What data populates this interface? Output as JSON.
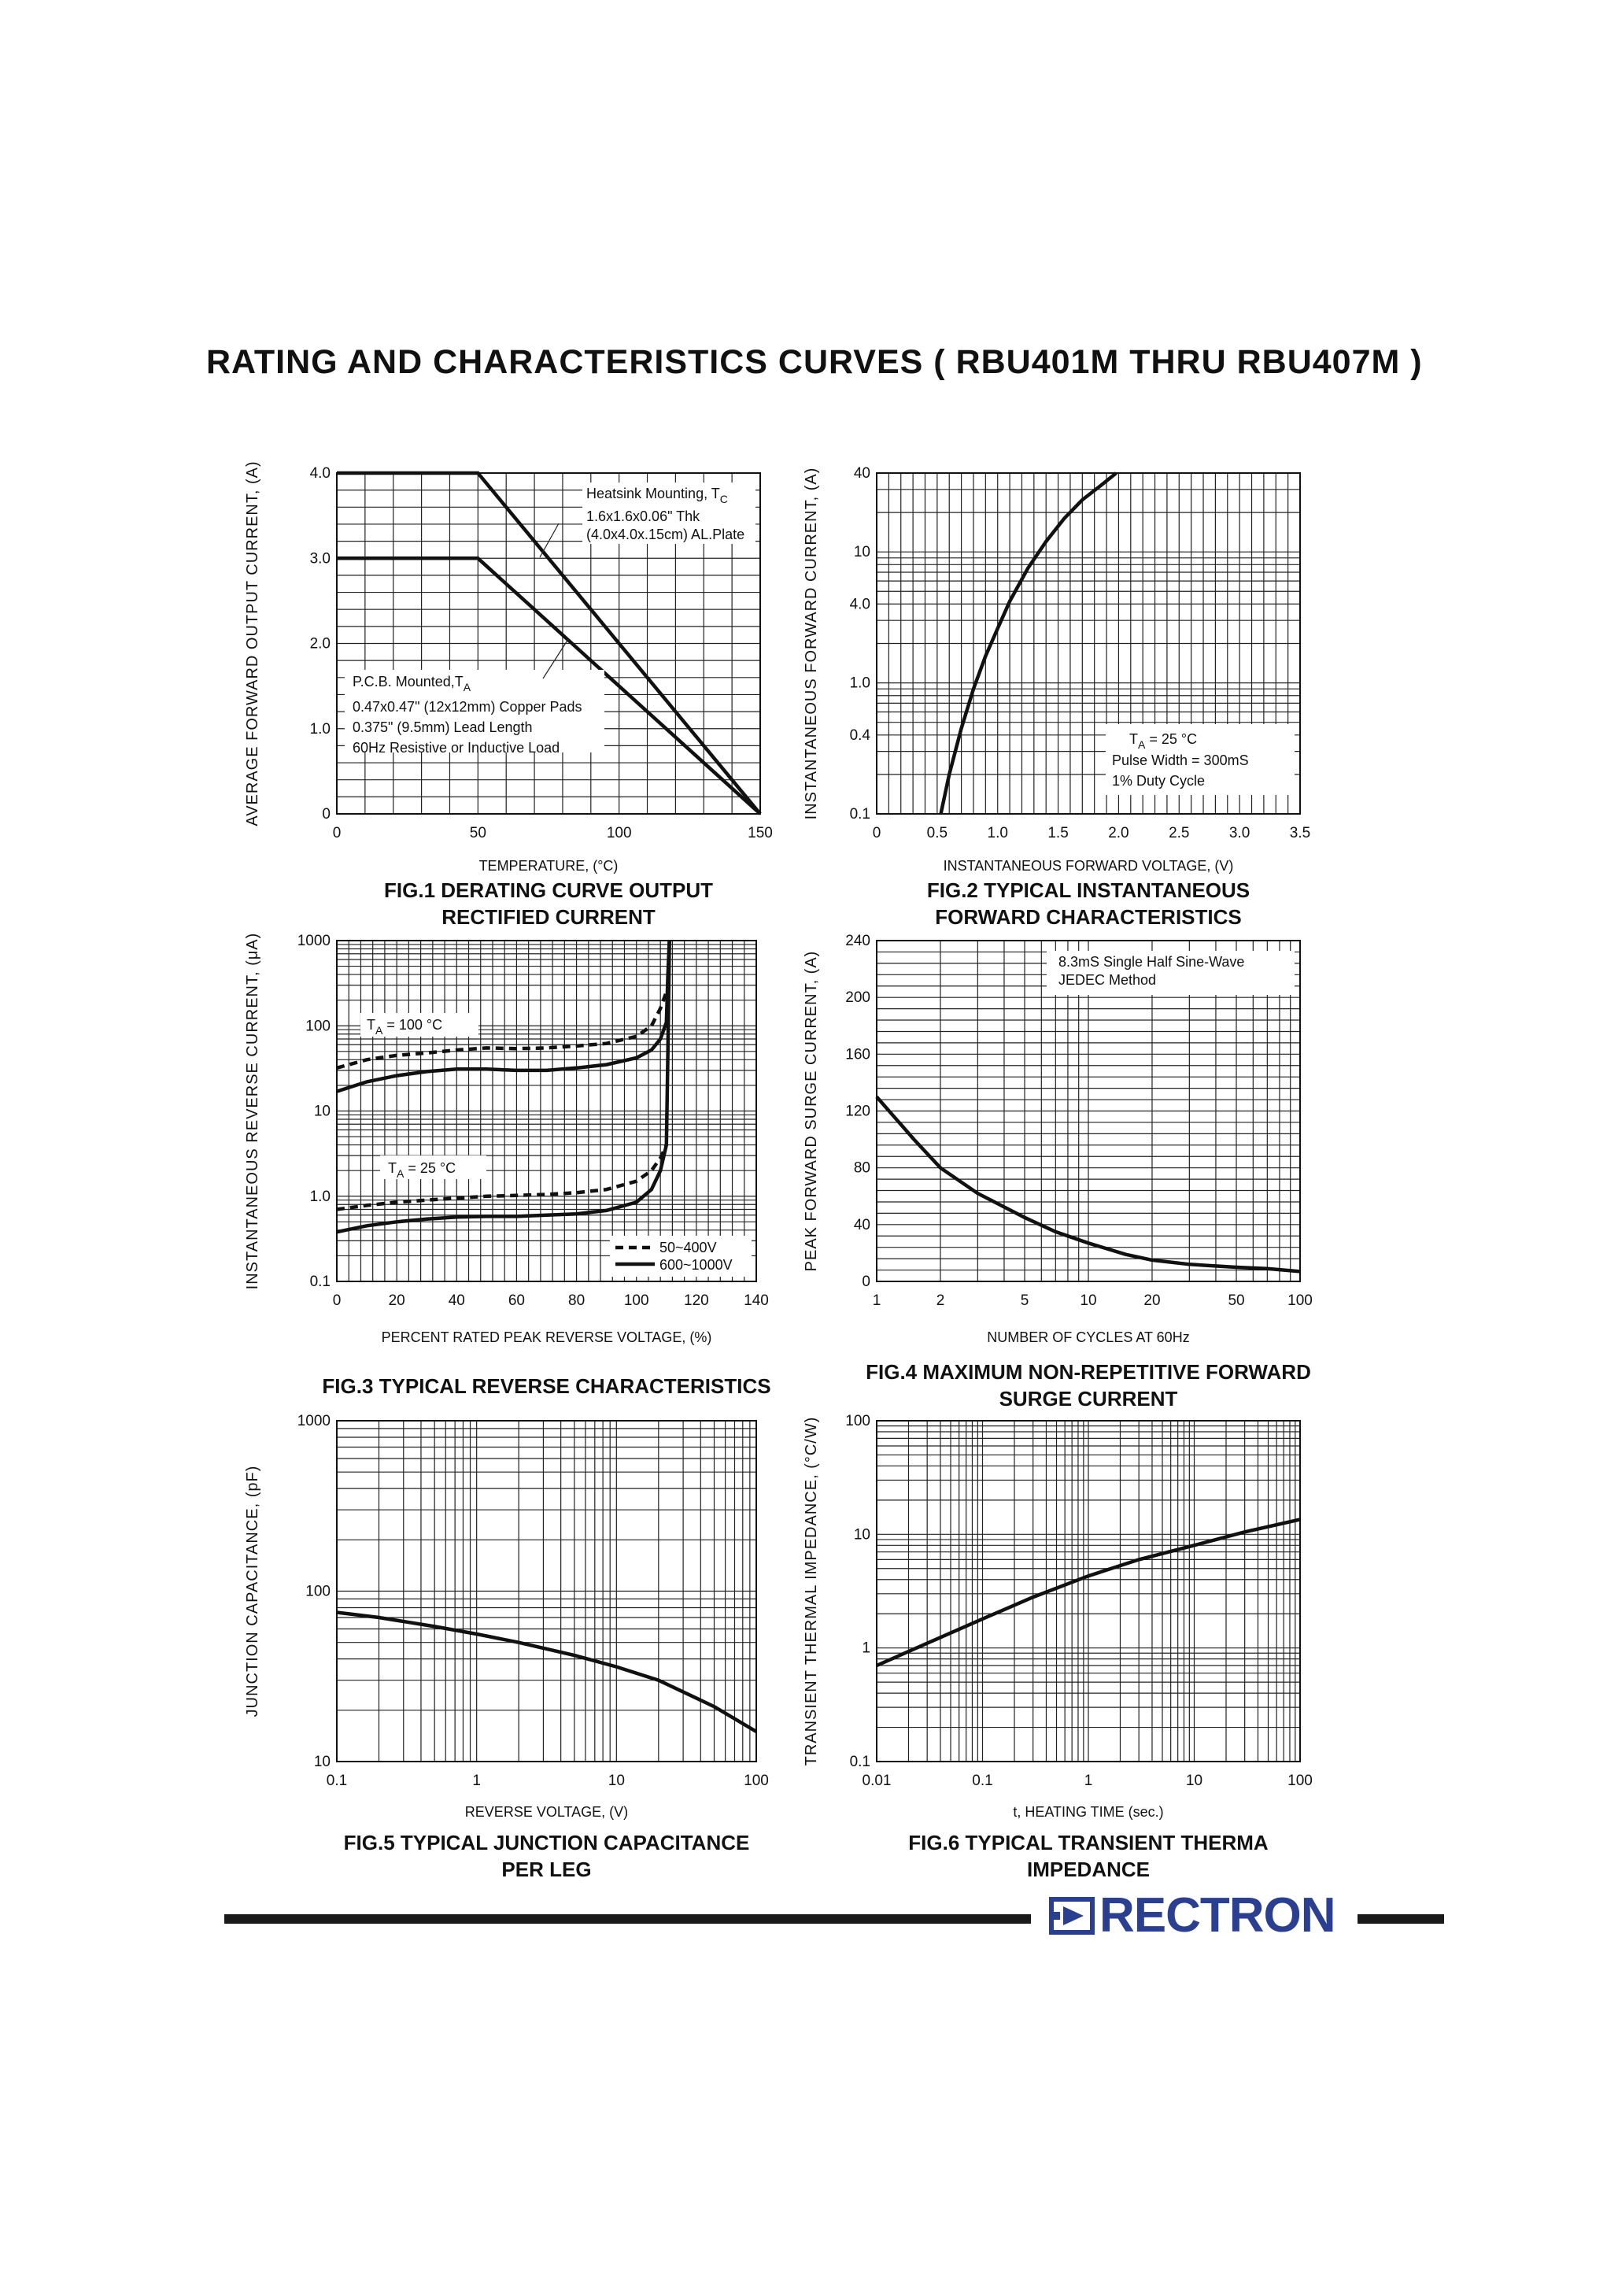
{
  "page_title": "RATING AND CHARACTERISTICS CURVES ( RBU401M THRU RBU407M )",
  "footer": {
    "logo_text": "RECTRON",
    "brand_color": "#2a3f8f"
  },
  "chart_data": [
    {
      "id": "fig1",
      "type": "line",
      "caption": [
        "FIG.1 DERATING CURVE OUTPUT",
        "RECTIFIED CURRENT"
      ],
      "xlabel": "TEMPERATURE, (°C)",
      "ylabel": "AVERAGE FORWARD OUTPUT CURRENT, (A)",
      "xlim": [
        0,
        150
      ],
      "ylim": [
        0,
        4
      ],
      "x_ticks": [
        0,
        50,
        100,
        150
      ],
      "x_tick_labels": [
        "0",
        "50",
        "100",
        "150"
      ],
      "y_ticks": [
        0,
        1,
        2,
        3,
        4
      ],
      "y_tick_labels": [
        "0",
        "1.0",
        "2.0",
        "3.0",
        "4.0"
      ],
      "grid": true,
      "series": [
        {
          "style": "solid",
          "x": [
            0,
            50,
            150
          ],
          "y": [
            4,
            4,
            0
          ]
        },
        {
          "style": "solid",
          "x": [
            0,
            50,
            150
          ],
          "y": [
            3,
            3,
            0
          ]
        }
      ],
      "annotations": [
        [
          "Heatsink Mounting, T",
          "1.6x1.6x0.06\" Thk",
          "(4.0x4.0x.15cm) AL.Plate"
        ],
        [
          "P.C.B. Mounted,T",
          "0.47x0.47\" (12x12mm) Copper Pads",
          "0.375\" (9.5mm) Lead Length",
          "60Hz Resistive or Inductive Load"
        ]
      ],
      "annotation_subscripts": [
        "C",
        "A"
      ]
    },
    {
      "id": "fig2",
      "type": "line",
      "caption": [
        "FIG.2 TYPICAL INSTANTANEOUS",
        "FORWARD CHARACTERISTICS"
      ],
      "xlabel": "INSTANTANEOUS FORWARD VOLTAGE, (V)",
      "ylabel": "INSTANTANEOUS FORWARD CURRENT, (A)",
      "xlim": [
        0,
        3.5
      ],
      "ylim": [
        0.1,
        40
      ],
      "yscale": "log",
      "x_ticks": [
        0,
        0.5,
        1,
        1.5,
        2,
        2.5,
        3,
        3.5
      ],
      "x_tick_labels": [
        "0",
        "0.5",
        "1.0",
        "1.5",
        "2.0",
        "2.5",
        "3.0",
        "3.5"
      ],
      "y_ticks": [
        0.1,
        0.4,
        1,
        4,
        10,
        40
      ],
      "y_tick_labels": [
        "0.1",
        "0.4",
        "1.0",
        "4.0",
        "10",
        "40"
      ],
      "grid": true,
      "series": [
        {
          "style": "solid",
          "x": [
            0.53,
            0.6,
            0.7,
            0.8,
            0.9,
            1.0,
            1.1,
            1.25,
            1.4,
            1.55,
            1.7,
            1.85,
            1.98
          ],
          "y": [
            0.1,
            0.2,
            0.45,
            0.9,
            1.6,
            2.6,
            4.2,
            7.5,
            12,
            18,
            25,
            32,
            40
          ]
        }
      ],
      "annotations": [
        [
          "T",
          " = 25 °C",
          "Pulse Width = 300mS",
          "1% Duty Cycle"
        ]
      ],
      "annotation_subscripts": [
        "A"
      ]
    },
    {
      "id": "fig3",
      "type": "line",
      "caption": [
        "FIG.3 TYPICAL REVERSE CHARACTERISTICS"
      ],
      "xlabel": "PERCENT RATED PEAK REVERSE VOLTAGE, (%)",
      "ylabel": "INSTANTANEOUS REVERSE CURRENT, (μA)",
      "xlim": [
        0,
        140
      ],
      "ylim": [
        0.1,
        1000
      ],
      "yscale": "log",
      "x_ticks": [
        0,
        20,
        40,
        60,
        80,
        100,
        120,
        140
      ],
      "x_tick_labels": [
        "0",
        "20",
        "40",
        "60",
        "80",
        "100",
        "120",
        "140"
      ],
      "y_ticks": [
        0.1,
        1,
        10,
        100,
        1000
      ],
      "y_tick_labels": [
        "0.1",
        "1.0",
        "10",
        "100",
        "1000"
      ],
      "grid": true,
      "series": [
        {
          "name": "50~400V",
          "style": "dashed",
          "x": [
            0,
            10,
            20,
            30,
            40,
            50,
            60,
            70,
            80,
            90,
            100,
            105,
            108,
            110
          ],
          "y": [
            32,
            40,
            45,
            48,
            52,
            55,
            54,
            55,
            58,
            62,
            75,
            100,
            160,
            250
          ]
        },
        {
          "name": "600~1000V",
          "style": "solid",
          "x": [
            0,
            10,
            20,
            30,
            40,
            50,
            60,
            70,
            80,
            90,
            100,
            105,
            108,
            110,
            110.5,
            111
          ],
          "y": [
            17,
            22,
            26,
            29,
            31,
            31,
            30,
            30,
            32,
            35,
            42,
            52,
            70,
            110,
            400,
            1000
          ]
        },
        {
          "name": "50~400V",
          "style": "dashed",
          "x": [
            0,
            10,
            20,
            30,
            40,
            50,
            60,
            70,
            80,
            90,
            100,
            105,
            108,
            110
          ],
          "y": [
            0.7,
            0.78,
            0.85,
            0.9,
            0.95,
            1.0,
            1.02,
            1.05,
            1.1,
            1.2,
            1.5,
            2.0,
            2.8,
            4.0
          ]
        },
        {
          "name": "600~1000V",
          "style": "solid",
          "x": [
            0,
            10,
            20,
            30,
            40,
            50,
            60,
            70,
            80,
            90,
            100,
            105,
            108,
            110,
            110.5,
            111
          ],
          "y": [
            0.38,
            0.45,
            0.5,
            0.54,
            0.57,
            0.58,
            0.58,
            0.6,
            0.62,
            0.68,
            0.85,
            1.2,
            2.0,
            4.0,
            50,
            1000
          ]
        }
      ],
      "annotations": [
        [
          "T",
          " = 100 °C"
        ],
        [
          "T",
          " = 25 °C"
        ]
      ],
      "annotation_subscripts": [
        "A",
        "A"
      ],
      "legend": {
        "position": "bottom-right",
        "entries": [
          "50~400V",
          "600~1000V"
        ]
      }
    },
    {
      "id": "fig4",
      "type": "line",
      "caption": [
        "FIG.4 MAXIMUM NON-REPETITIVE FORWARD",
        "SURGE CURRENT"
      ],
      "xlabel": "NUMBER OF CYCLES AT 60Hz",
      "ylabel": "PEAK  FORWARD SURGE CURRENT, (A)",
      "xlim": [
        1,
        100
      ],
      "xscale": "log",
      "ylim": [
        0,
        240
      ],
      "x_ticks": [
        1,
        2,
        5,
        10,
        20,
        50,
        100
      ],
      "x_tick_labels": [
        "1",
        "2",
        "5",
        "10",
        "20",
        "50",
        "100"
      ],
      "y_ticks": [
        0,
        40,
        80,
        120,
        160,
        200,
        240
      ],
      "y_tick_labels": [
        "0",
        "40",
        "80",
        "120",
        "160",
        "200",
        "240"
      ],
      "grid": true,
      "series": [
        {
          "style": "solid",
          "x": [
            1,
            1.5,
            2,
            3,
            5,
            7,
            10,
            15,
            20,
            30,
            50,
            70,
            100
          ],
          "y": [
            130,
            100,
            80,
            62,
            45,
            35,
            27,
            19,
            15,
            12,
            10,
            9,
            7
          ]
        }
      ],
      "annotations": [
        [
          "8.3mS Single Half Sine-Wave",
          "JEDEC Method"
        ]
      ]
    },
    {
      "id": "fig5",
      "type": "line",
      "caption": [
        "FIG.5 TYPICAL JUNCTION CAPACITANCE",
        "PER LEG"
      ],
      "xlabel": "REVERSE VOLTAGE, (V)",
      "ylabel": "JUNCTION CAPACITANCE, (pF)",
      "xlim": [
        0.1,
        100
      ],
      "xscale": "log",
      "ylim": [
        10,
        1000
      ],
      "yscale": "log",
      "x_ticks": [
        0.1,
        1,
        10,
        100
      ],
      "x_tick_labels": [
        "0.1",
        "1",
        "10",
        "100"
      ],
      "y_ticks": [
        10,
        100,
        1000
      ],
      "y_tick_labels": [
        "10",
        "100",
        "1000"
      ],
      "grid": true,
      "series": [
        {
          "style": "solid",
          "x": [
            0.1,
            0.2,
            0.5,
            1,
            2,
            5,
            10,
            20,
            50,
            100
          ],
          "y": [
            75,
            70,
            62,
            56,
            50,
            42,
            36,
            30,
            21,
            15
          ]
        }
      ]
    },
    {
      "id": "fig6",
      "type": "line",
      "caption": [
        "FIG.6 TYPICAL TRANSIENT THERMA",
        "IMPEDANCE"
      ],
      "xlabel": "t, HEATING TIME (sec.)",
      "ylabel": "TRANSIENT THERMAL IMPEDANCE, (°C/W)",
      "xlim": [
        0.01,
        100
      ],
      "xscale": "log",
      "ylim": [
        0.1,
        100
      ],
      "yscale": "log",
      "x_ticks": [
        0.01,
        0.1,
        1,
        10,
        100
      ],
      "x_tick_labels": [
        "0.01",
        "0.1",
        "1",
        "10",
        "100"
      ],
      "y_ticks": [
        0.1,
        1,
        10,
        100
      ],
      "y_tick_labels": [
        "0.1",
        "1",
        "10",
        "100"
      ],
      "grid": true,
      "series": [
        {
          "style": "solid",
          "x": [
            0.01,
            0.03,
            0.1,
            0.3,
            1,
            3,
            10,
            30,
            100
          ],
          "y": [
            0.7,
            1.1,
            1.8,
            2.8,
            4.3,
            6.0,
            8.0,
            10.5,
            13.5
          ]
        }
      ]
    }
  ]
}
